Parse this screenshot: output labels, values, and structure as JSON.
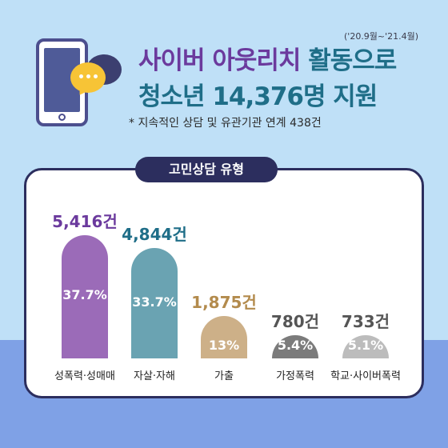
{
  "header": {
    "period": "('20.9월~'21.4월)",
    "title_line1_part1": "사이버 아웃리치 ",
    "title_line1_part2": "활동으로",
    "title_line2": "청소년 14,376명 지원",
    "subtitle": "* 지속적인 상담 및 유관기관 연계 438건"
  },
  "panel": {
    "title": "고민상담 유형"
  },
  "colors": {
    "background": "#bfe0f7",
    "band": "#7fa1e6",
    "navy": "#2c2e5e",
    "purple": "#6b3a9d",
    "teal": "#1f6e88"
  },
  "chart_data": {
    "type": "bar",
    "title": "고민상담 유형",
    "categories": [
      "성폭력·성매매",
      "자살·자해",
      "가출",
      "가정폭력",
      "학교·사이버폭력"
    ],
    "values": [
      5416,
      4844,
      1875,
      780,
      733
    ],
    "value_labels": [
      "5,416건",
      "4,844건",
      "1,875건",
      "780건",
      "733건"
    ],
    "percent_labels": [
      "37.7%",
      "33.7%",
      "13%",
      "5.4%",
      "5.1%"
    ],
    "bar_colors": [
      "#9b6bb8",
      "#6aa3b2",
      "#cdb088",
      "#7b7b7b",
      "#bcbcbc"
    ],
    "value_label_colors": [
      "#6b3a9d",
      "#1f6e88",
      "#b38b4d",
      "#555555",
      "#555555"
    ]
  }
}
